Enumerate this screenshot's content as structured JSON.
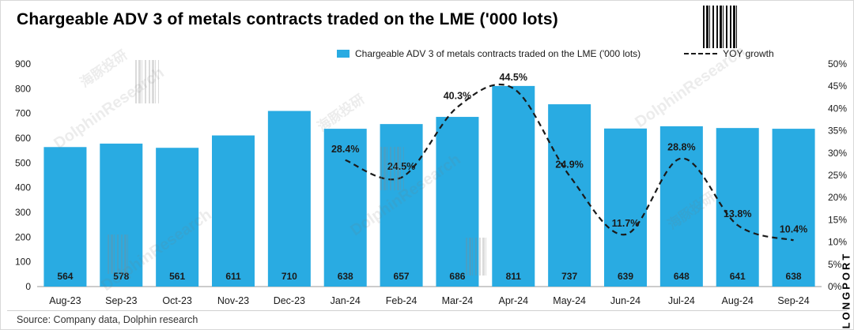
{
  "source": "Source:  Company data, Dolphin research",
  "branding": {
    "longport": "LONGPORT",
    "watermark_cn": "海豚投研",
    "watermark_en": "DolphinResearch"
  },
  "chart_data": {
    "type": "bar+line",
    "title": "Chargeable ADV 3 of metals contracts traded on the LME ('000 lots)",
    "categories": [
      "Aug-23",
      "Sep-23",
      "Oct-23",
      "Nov-23",
      "Dec-23",
      "Jan-24",
      "Feb-24",
      "Mar-24",
      "Apr-24",
      "May-24",
      "Jun-24",
      "Jul-24",
      "Aug-24",
      "Sep-24"
    ],
    "series": [
      {
        "name": "Chargeable ADV 3 of metals contracts traded on the LME ('000 lots)",
        "type": "bar",
        "axis": "left",
        "color": "#29ABE2",
        "values": [
          564,
          578,
          561,
          611,
          710,
          638,
          657,
          686,
          811,
          737,
          639,
          648,
          641,
          638
        ]
      },
      {
        "name": "YOY growth",
        "type": "line",
        "axis": "right",
        "color": "#1a1a1a",
        "dashed": true,
        "label_format": "percent",
        "values": [
          null,
          null,
          null,
          null,
          null,
          28.4,
          24.5,
          40.3,
          44.5,
          24.9,
          11.7,
          28.8,
          13.8,
          10.4
        ]
      }
    ],
    "left_axis": {
      "min": 0,
      "max": 900,
      "step": 100
    },
    "right_axis": {
      "min": 0,
      "max": 50,
      "step": 5,
      "format": "percent"
    },
    "grid": false,
    "legend_position": "top"
  }
}
